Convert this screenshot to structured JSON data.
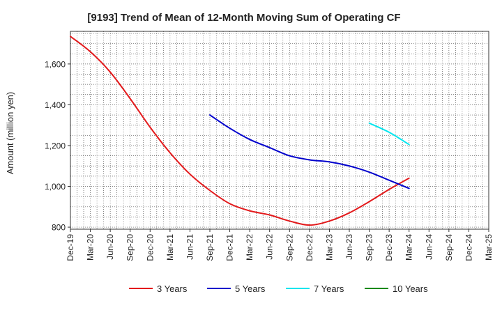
{
  "chart_data": {
    "type": "line",
    "title": "[9193]  Trend of Mean of 12-Month Moving Sum of Operating CF",
    "xlabel": "",
    "ylabel": "Amount (million yen)",
    "ylim": [
      790,
      1760
    ],
    "yticks": [
      800,
      1000,
      1200,
      1400,
      1600
    ],
    "ytick_labels": [
      "800",
      "1,000",
      "1,200",
      "1,400",
      "1,600"
    ],
    "grid": true,
    "legend_position": "bottom",
    "categories": [
      "Dec-19",
      "Mar-20",
      "Jun-20",
      "Sep-20",
      "Dec-20",
      "Mar-21",
      "Jun-21",
      "Sep-21",
      "Dec-21",
      "Mar-22",
      "Jun-22",
      "Sep-22",
      "Dec-22",
      "Mar-23",
      "Jun-23",
      "Sep-23",
      "Dec-23",
      "Mar-24",
      "Jun-24",
      "Sep-24",
      "Dec-24",
      "Mar-25"
    ],
    "series": [
      {
        "name": "3 Years",
        "color": "#e31a1c",
        "values": [
          1735,
          1660,
          1560,
          1430,
          1290,
          1165,
          1060,
          980,
          915,
          880,
          860,
          830,
          810,
          830,
          870,
          925,
          985,
          1040,
          null,
          null,
          null,
          null
        ]
      },
      {
        "name": "5 Years",
        "color": "#0000cc",
        "values": [
          null,
          null,
          null,
          null,
          null,
          null,
          null,
          1350,
          1285,
          1230,
          1190,
          1150,
          1130,
          1120,
          1100,
          1070,
          1030,
          990,
          null,
          null,
          null,
          null
        ]
      },
      {
        "name": "7 Years",
        "color": "#00e5ee",
        "values": [
          null,
          null,
          null,
          null,
          null,
          null,
          null,
          null,
          null,
          null,
          null,
          null,
          null,
          null,
          null,
          1310,
          1265,
          1205,
          null,
          null,
          null,
          null
        ]
      },
      {
        "name": "10 Years",
        "color": "#1a8a1a",
        "values": [
          null,
          null,
          null,
          null,
          null,
          null,
          null,
          null,
          null,
          null,
          null,
          null,
          null,
          null,
          null,
          null,
          null,
          null,
          null,
          null,
          null,
          null
        ]
      }
    ]
  }
}
